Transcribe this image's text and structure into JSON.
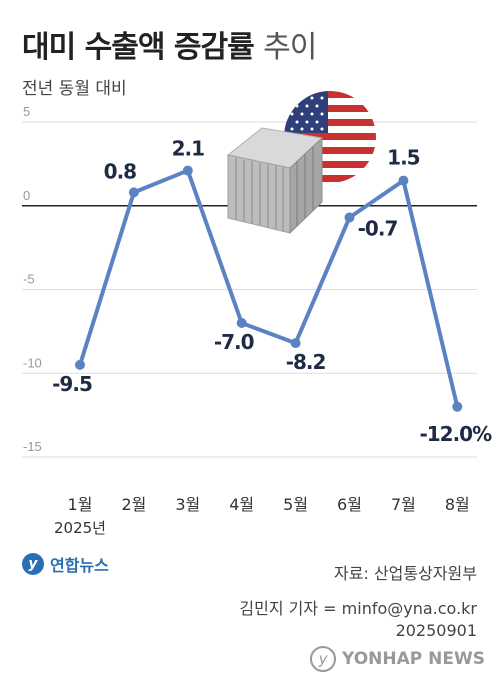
{
  "header": {
    "title_bold": "대미 수출액 증감률",
    "title_light": "추이",
    "subtitle": "전년 동월 대비"
  },
  "chart_data": {
    "type": "line",
    "categories": [
      "1월",
      "2월",
      "3월",
      "4월",
      "5월",
      "6월",
      "7월",
      "8월"
    ],
    "year_label": "2025년",
    "values": [
      -9.5,
      0.8,
      2.1,
      -7.0,
      -8.2,
      -0.7,
      1.5,
      -12.0
    ],
    "value_labels": [
      "-9.5",
      "0.8",
      "2.1",
      "-7.0",
      "-8.2",
      "-0.7",
      "1.5",
      "-12.0%"
    ],
    "ylim": [
      -15,
      5
    ],
    "yticks": [
      5,
      0,
      -5,
      -10,
      -15
    ],
    "grid": true,
    "line_color": "#5b82c2",
    "zero_line_color": "#222222",
    "grid_color": "#dddddd"
  },
  "footer": {
    "logo_text": "연합뉴스",
    "source": "자료: 산업통상자원부",
    "credit_line1": "김민지 기자  = minfo@yna.co.kr",
    "credit_line2": "20250901",
    "watermark": "YONHAP NEWS"
  },
  "illustration": {
    "flag": "us-flag-icon",
    "container": "shipping-container-icon"
  }
}
